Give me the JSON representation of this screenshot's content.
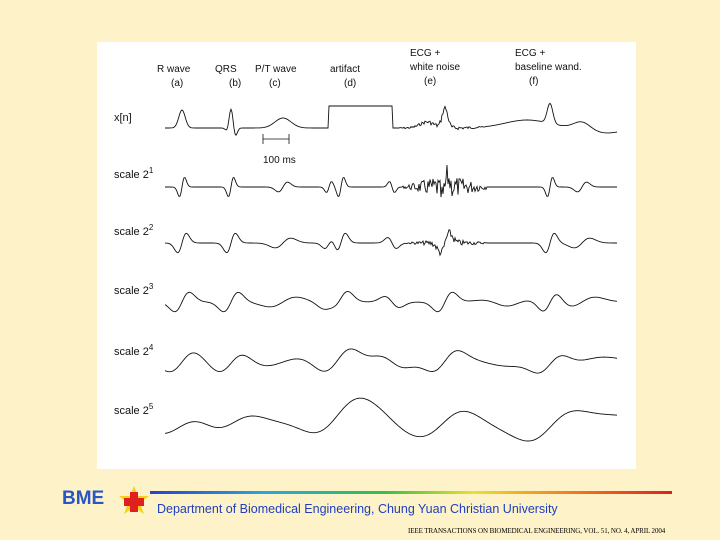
{
  "figure": {
    "column_headers": [
      {
        "lines": [
          "R wave",
          "(a)"
        ]
      },
      {
        "lines": [
          "QRS",
          "(b)"
        ]
      },
      {
        "lines": [
          "P/T wave",
          "(c)"
        ]
      },
      {
        "lines": [
          "artifact",
          "(d)"
        ]
      },
      {
        "lines": [
          "ECG +",
          "white noise",
          "(e)"
        ]
      },
      {
        "lines": [
          "ECG +",
          "baseline wand.",
          "(f)"
        ]
      }
    ],
    "row_labels": [
      {
        "text": "x[n]",
        "sup": ""
      },
      {
        "text": "scale 2",
        "sup": "1"
      },
      {
        "text": "scale 2",
        "sup": "2"
      },
      {
        "text": "scale 2",
        "sup": "3"
      },
      {
        "text": "scale 2",
        "sup": "4"
      },
      {
        "text": "scale 2",
        "sup": "5"
      }
    ],
    "scale_bar_label": "100 ms"
  },
  "logo": {
    "text": "BME",
    "colors": {
      "text": "#2a55c4",
      "cross": "#e02020",
      "star": "#f2d21a"
    }
  },
  "footer": {
    "department": "Department of Biomedical Engineering, Chung Yuan Christian University",
    "citation": "IEEE TRANSACTIONS ON BIOMEDICAL ENGINEERING, VOL. 51, NO. 4, APRIL 2004"
  }
}
